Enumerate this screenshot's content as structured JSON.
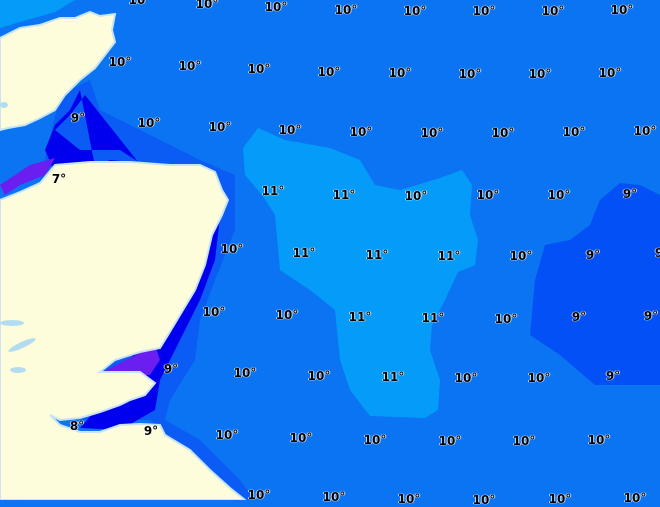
{
  "map": {
    "colors": {
      "land": "#fdfddc",
      "sea_10": "#0a74f2",
      "sea_11": "#049cf8",
      "sea_9": "#0250f6",
      "sea_9_coastal": "#0a5cf4",
      "sea_8": "#0000ee",
      "sea_7": "#6a1ef0",
      "lakes": "#b4dcf0"
    },
    "temperature_labels": [
      "10°",
      "10°",
      "10°",
      "10°",
      "10°",
      "10°",
      "10°",
      "10°",
      "10°",
      "10°",
      "10°",
      "10°",
      "10°",
      "10°",
      "10°",
      "10°",
      "9°",
      "10°",
      "10°",
      "10°",
      "10°",
      "10°",
      "10°",
      "10°",
      "10°",
      "7°",
      "11°",
      "11°",
      "10°",
      "10°",
      "10°",
      "9°",
      "10°",
      "11°",
      "11°",
      "11°",
      "10°",
      "9°",
      "9°",
      "10°",
      "10°",
      "11°",
      "11°",
      "10°",
      "9°",
      "9°",
      "9°",
      "10°",
      "10°",
      "11°",
      "10°",
      "10°",
      "9°",
      "8°",
      "9°",
      "10°",
      "10°",
      "10°",
      "10°",
      "10°",
      "10°",
      "10°",
      "10°",
      "10°",
      "10°",
      "10°",
      "10°"
    ]
  }
}
